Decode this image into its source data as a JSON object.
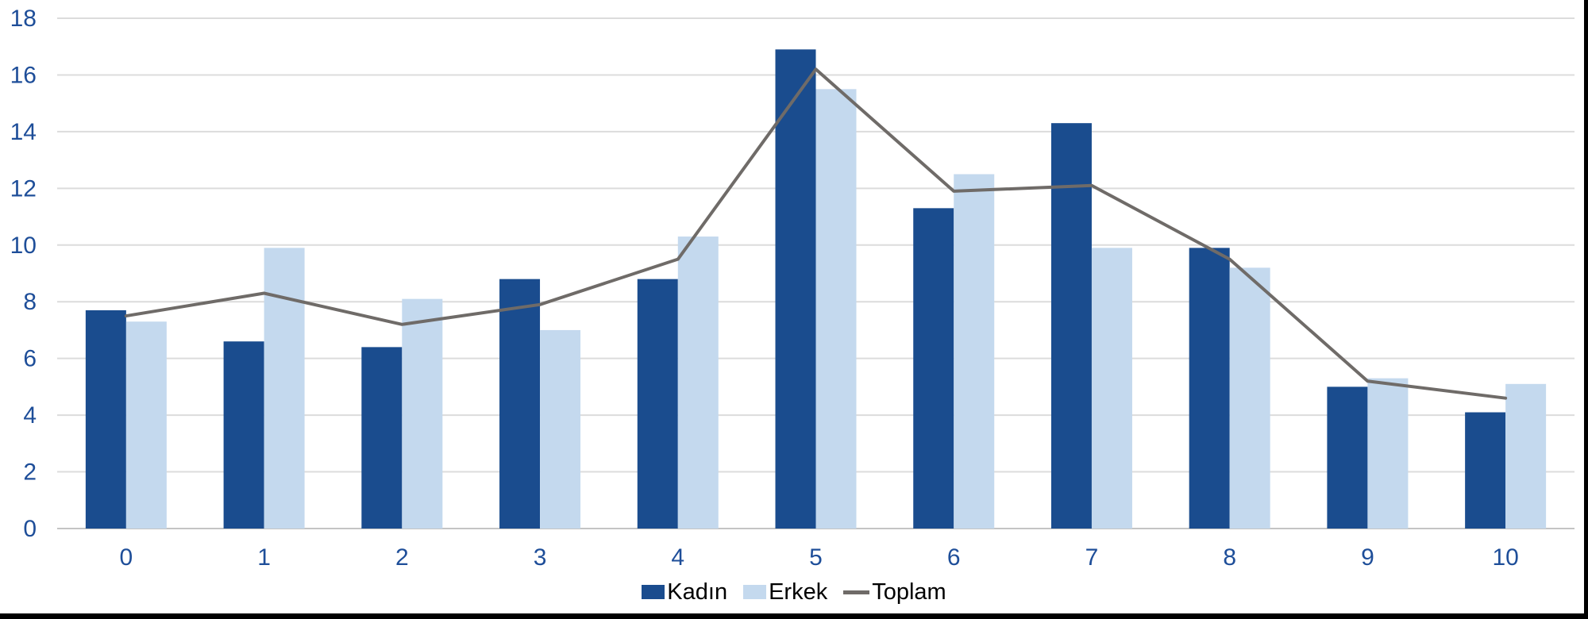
{
  "chart_data": {
    "type": "combo-bar-line",
    "categories": [
      "0",
      "1",
      "2",
      "3",
      "4",
      "5",
      "6",
      "7",
      "8",
      "9",
      "10"
    ],
    "series": [
      {
        "name": "Kadın",
        "type": "bar",
        "color": "#1A4C8E",
        "values": [
          7.7,
          6.6,
          6.4,
          8.8,
          8.8,
          16.9,
          11.3,
          14.3,
          9.9,
          5.0,
          4.1
        ]
      },
      {
        "name": "Erkek",
        "type": "bar",
        "color": "#C4D9EE",
        "values": [
          7.3,
          9.9,
          8.1,
          7.0,
          10.3,
          15.5,
          12.5,
          9.9,
          9.2,
          5.3,
          5.1
        ]
      },
      {
        "name": "Toplam",
        "type": "line",
        "color": "#6F6B68",
        "values": [
          7.5,
          8.3,
          7.2,
          7.9,
          9.5,
          16.2,
          11.9,
          12.1,
          9.5,
          5.2,
          4.6
        ]
      }
    ],
    "title": "",
    "xlabel": "",
    "ylabel": "",
    "ylim": [
      0,
      18
    ],
    "yticks": [
      0,
      2,
      4,
      6,
      8,
      10,
      12,
      14,
      16,
      18
    ],
    "grid": true,
    "legend_position": "bottom"
  },
  "style": {
    "grid_color": "#DCDCDC",
    "axis_line_color": "#C4C4C4",
    "tick_label_color": "#1E4E99",
    "legend_text_color": "#000000",
    "background_color": "#FFFFFF",
    "border_color": "#000000"
  }
}
